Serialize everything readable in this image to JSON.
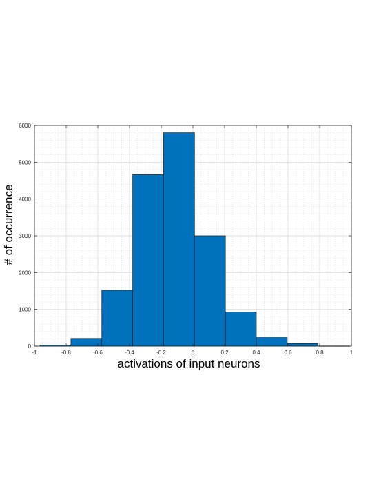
{
  "chart_data": {
    "type": "bar",
    "title": "",
    "xlabel": "activations of input neurons",
    "ylabel": "# of occurrence",
    "xlim": [
      -1,
      1
    ],
    "ylim": [
      0,
      6000
    ],
    "xticks": [
      "-1",
      "-0.8",
      "-0.6",
      "-0.4",
      "-0.2",
      "0",
      "0.2",
      "0.4",
      "0.6",
      "0.8",
      "1"
    ],
    "xtick_values": [
      -1,
      -0.8,
      -0.6,
      -0.4,
      -0.2,
      0,
      0.2,
      0.4,
      0.6,
      0.8,
      1
    ],
    "yticks": [
      "0",
      "1000",
      "2000",
      "3000",
      "4000",
      "5000",
      "6000"
    ],
    "ytick_values": [
      0,
      1000,
      2000,
      3000,
      4000,
      5000,
      6000
    ],
    "grid": true,
    "minor_grid": true,
    "bar_color": "#0072BD",
    "bar_edge_color": "#1a1a1a",
    "bins": [
      {
        "x0": -0.965,
        "x1": -0.77,
        "value": 30
      },
      {
        "x0": -0.77,
        "x1": -0.575,
        "value": 210
      },
      {
        "x0": -0.575,
        "x1": -0.38,
        "value": 1520
      },
      {
        "x0": -0.38,
        "x1": -0.185,
        "value": 4660
      },
      {
        "x0": -0.185,
        "x1": 0.01,
        "value": 5800
      },
      {
        "x0": 0.01,
        "x1": 0.205,
        "value": 3000
      },
      {
        "x0": 0.205,
        "x1": 0.4,
        "value": 930
      },
      {
        "x0": 0.4,
        "x1": 0.595,
        "value": 250
      },
      {
        "x0": 0.595,
        "x1": 0.79,
        "value": 70
      },
      {
        "x0": 0.79,
        "x1": 0.985,
        "value": 5
      }
    ]
  }
}
